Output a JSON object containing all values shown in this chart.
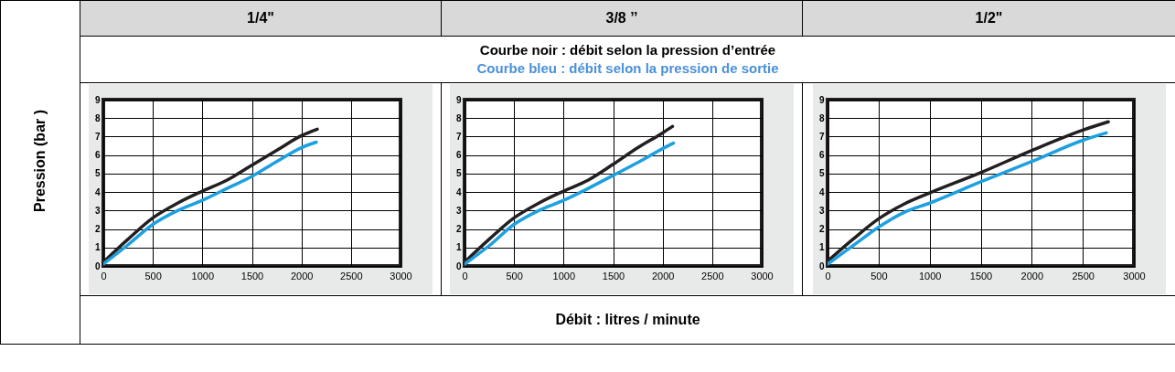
{
  "chart_data": [
    {
      "type": "line",
      "title": "1/4\"",
      "ylabel": "Pression  (bar )",
      "xlim": [
        0,
        3000
      ],
      "ylim": [
        0,
        9
      ],
      "xticks": [
        0,
        500,
        1000,
        1500,
        2000,
        2500,
        3000
      ],
      "yticks": [
        0,
        1,
        2,
        3,
        4,
        5,
        6,
        7,
        8,
        9
      ],
      "grid": true,
      "series": [
        {
          "color": "#231f20",
          "x": [
            0,
            250,
            500,
            750,
            1000,
            1250,
            1500,
            1750,
            2000,
            2160
          ],
          "values": [
            0.2,
            1.45,
            2.6,
            3.4,
            4.05,
            4.65,
            5.45,
            6.25,
            7.05,
            7.4
          ]
        },
        {
          "color": "#1ea0e0",
          "x": [
            0,
            250,
            500,
            750,
            1000,
            1250,
            1500,
            1750,
            2000,
            2150
          ],
          "values": [
            0.1,
            1.15,
            2.25,
            3.0,
            3.55,
            4.2,
            4.85,
            5.65,
            6.4,
            6.7
          ]
        }
      ]
    },
    {
      "type": "line",
      "title": "3/8 ’’",
      "xlabel": "Débit : litres / minute",
      "annotations": [
        "Courbe noir : débit selon la pression d’entrée",
        "Courbe bleu : débit selon la pression de sortie"
      ],
      "xlim": [
        0,
        3000
      ],
      "ylim": [
        0,
        9
      ],
      "xticks": [
        0,
        500,
        1000,
        1500,
        2000,
        2500,
        3000
      ],
      "yticks": [
        0,
        1,
        2,
        3,
        4,
        5,
        6,
        7,
        8,
        9
      ],
      "grid": true,
      "series": [
        {
          "color": "#231f20",
          "x": [
            0,
            250,
            500,
            750,
            1000,
            1250,
            1500,
            1750,
            2000,
            2100
          ],
          "values": [
            0.2,
            1.45,
            2.6,
            3.4,
            4.05,
            4.65,
            5.5,
            6.4,
            7.2,
            7.55
          ]
        },
        {
          "color": "#1ea0e0",
          "x": [
            0,
            250,
            500,
            750,
            1000,
            1250,
            1500,
            1750,
            2000,
            2110
          ],
          "values": [
            0.1,
            1.1,
            2.25,
            3.0,
            3.55,
            4.2,
            4.9,
            5.6,
            6.35,
            6.65
          ]
        }
      ]
    },
    {
      "type": "line",
      "title": "1/2\"",
      "xlim": [
        0,
        3000
      ],
      "ylim": [
        0,
        9
      ],
      "xticks": [
        0,
        500,
        1000,
        1500,
        2000,
        2500,
        3000
      ],
      "yticks": [
        0,
        1,
        2,
        3,
        4,
        5,
        6,
        7,
        8,
        9
      ],
      "grid": true,
      "series": [
        {
          "color": "#231f20",
          "x": [
            0,
            250,
            500,
            750,
            1000,
            1500,
            2000,
            2500,
            2750
          ],
          "values": [
            0.25,
            1.45,
            2.55,
            3.35,
            3.95,
            5.05,
            6.25,
            7.35,
            7.8
          ]
        },
        {
          "color": "#1ea0e0",
          "x": [
            0,
            250,
            500,
            750,
            1000,
            1500,
            2000,
            2500,
            2730
          ],
          "values": [
            0.1,
            1.1,
            2.1,
            2.9,
            3.4,
            4.55,
            5.65,
            6.8,
            7.2
          ]
        }
      ]
    }
  ]
}
